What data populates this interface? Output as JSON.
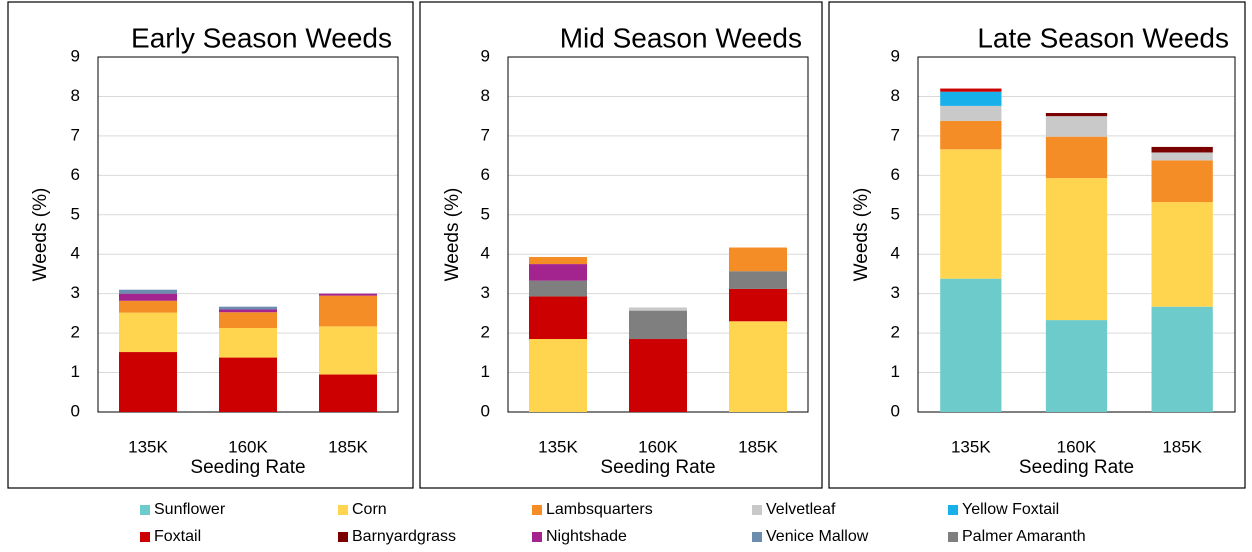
{
  "chart_data": [
    {
      "type": "bar",
      "stacked": true,
      "title": "Early Season Weeds",
      "xlabel": "Seeding Rate",
      "ylabel": "Weeds (%)",
      "categories": [
        "135K",
        "160K",
        "185K"
      ],
      "ylim": [
        0,
        9
      ],
      "yticks": [
        0,
        1,
        2,
        3,
        4,
        5,
        6,
        7,
        8,
        9
      ],
      "grid": true,
      "series": [
        {
          "name": "Foxtail",
          "values": [
            1.52,
            1.38,
            0.95
          ]
        },
        {
          "name": "Corn",
          "values": [
            1.0,
            0.75,
            1.22
          ]
        },
        {
          "name": "Lambsquarters",
          "values": [
            0.3,
            0.4,
            0.78
          ]
        },
        {
          "name": "Nightshade",
          "values": [
            0.18,
            0.07,
            0.05
          ]
        },
        {
          "name": "Venice Mallow",
          "values": [
            0.1,
            0.07,
            0
          ]
        }
      ]
    },
    {
      "type": "bar",
      "stacked": true,
      "title": "Mid Season Weeds",
      "xlabel": "Seeding Rate",
      "ylabel": "Weeds (%)",
      "categories": [
        "135K",
        "160K",
        "185K"
      ],
      "ylim": [
        0,
        9
      ],
      "yticks": [
        0,
        1,
        2,
        3,
        4,
        5,
        6,
        7,
        8,
        9
      ],
      "grid": true,
      "series": [
        {
          "name": "Corn",
          "values": [
            1.85,
            0,
            2.3
          ]
        },
        {
          "name": "Foxtail",
          "values": [
            1.08,
            1.85,
            0.82
          ]
        },
        {
          "name": "Palmer Amaranth",
          "values": [
            0.4,
            0.72,
            0.45
          ]
        },
        {
          "name": "Nightshade",
          "values": [
            0.42,
            0,
            0
          ]
        },
        {
          "name": "Lambsquarters",
          "values": [
            0.18,
            0,
            0.6
          ]
        },
        {
          "name": "Velvetleaf",
          "values": [
            0,
            0.08,
            0
          ]
        }
      ]
    },
    {
      "type": "bar",
      "stacked": true,
      "title": "Late Season Weeds",
      "xlabel": "Seeding Rate",
      "ylabel": "Weeds (%)",
      "categories": [
        "135K",
        "160K",
        "185K"
      ],
      "ylim": [
        0,
        9
      ],
      "yticks": [
        0,
        1,
        2,
        3,
        4,
        5,
        6,
        7,
        8,
        9
      ],
      "grid": true,
      "series": [
        {
          "name": "Sunflower",
          "values": [
            3.38,
            2.33,
            2.67
          ]
        },
        {
          "name": "Corn",
          "values": [
            3.28,
            3.6,
            2.65
          ]
        },
        {
          "name": "Lambsquarters",
          "values": [
            0.72,
            1.05,
            1.06
          ]
        },
        {
          "name": "Velvetleaf",
          "values": [
            0.38,
            0.52,
            0.2
          ]
        },
        {
          "name": "Yellow Foxtail",
          "values": [
            0.36,
            0,
            0
          ]
        },
        {
          "name": "Foxtail",
          "values": [
            0.08,
            0,
            0
          ]
        },
        {
          "name": "Barnyardgrass",
          "values": [
            0,
            0.08,
            0.14
          ]
        }
      ]
    }
  ],
  "legend": [
    {
      "name": "Sunflower",
      "color": "#6ecbcb"
    },
    {
      "name": "Corn",
      "color": "#ffd54f"
    },
    {
      "name": "Lambsquarters",
      "color": "#f58d26"
    },
    {
      "name": "Velvetleaf",
      "color": "#c9c9c9"
    },
    {
      "name": "Yellow Foxtail",
      "color": "#18b0ea"
    },
    {
      "name": "Foxtail",
      "color": "#cc0000"
    },
    {
      "name": "Barnyardgrass",
      "color": "#7a0000"
    },
    {
      "name": "Nightshade",
      "color": "#a3238f"
    },
    {
      "name": "Venice Mallow",
      "color": "#6c8db0"
    },
    {
      "name": "Palmer Amaranth",
      "color": "#7f7f7f"
    }
  ]
}
